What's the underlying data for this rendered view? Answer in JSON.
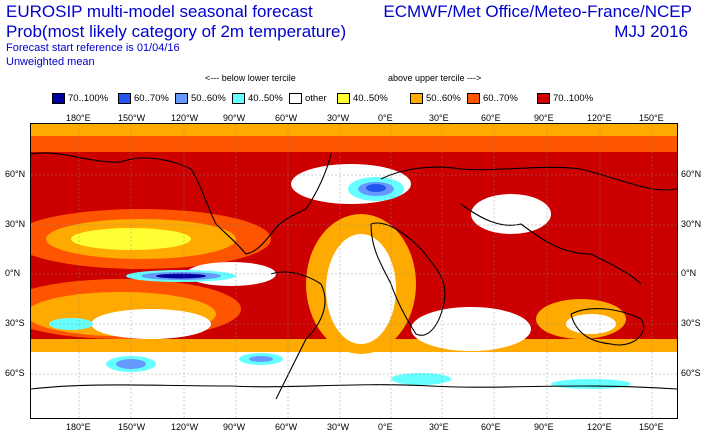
{
  "header": {
    "title_line1": "EUROSIP multi-model seasonal forecast",
    "title_line2": "Prob(most likely category of 2m temperature)",
    "ref_line": "Forecast start reference is 01/04/16",
    "mean_line": "Unweighted mean",
    "centres": "ECMWF/Met Office/Meteo-France/NCEP",
    "season": "MJJ 2016"
  },
  "terciles": {
    "below": "<--- below lower tercile",
    "above": "above upper tercile --->"
  },
  "legend": [
    {
      "label": "70..100%",
      "color": "#0000a0"
    },
    {
      "label": "60..70%",
      "color": "#2255ee"
    },
    {
      "label": "50..60%",
      "color": "#6699ff"
    },
    {
      "label": "40..50%",
      "color": "#66ffff"
    },
    {
      "label": "other",
      "color": "#ffffff"
    },
    {
      "label": "40..50%",
      "color": "#ffff33"
    },
    {
      "label": "50..60%",
      "color": "#ffaa00"
    },
    {
      "label": "60..70%",
      "color": "#ff5500"
    },
    {
      "label": "70..100%",
      "color": "#cc0000"
    }
  ],
  "axes": {
    "lon_labels": [
      "180°E",
      "150°W",
      "120°W",
      "90°W",
      "60°W",
      "30°W",
      "0°E",
      "30°E",
      "60°E",
      "90°E",
      "120°E",
      "150°E"
    ],
    "lat_labels_left": [
      "60°N",
      "30°N",
      "0°N",
      "30°S",
      "60°S"
    ],
    "lat_labels_right": [
      "60°N",
      "30°N",
      "0°N",
      "30°S",
      "60°S"
    ]
  }
}
